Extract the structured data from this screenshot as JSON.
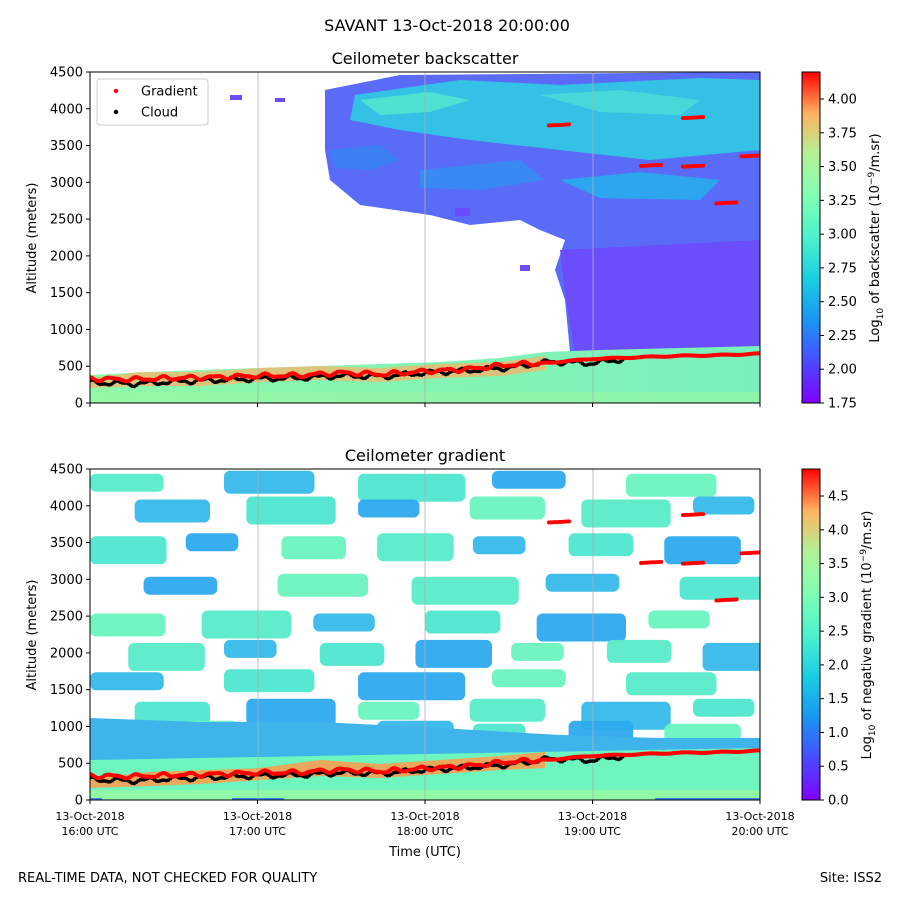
{
  "figure": {
    "suptitle": "SAVANT 13-Oct-2018 20:00:00",
    "footer_left": "REAL-TIME DATA, NOT CHECKED FOR QUALITY",
    "footer_right": "Site: ISS2",
    "xlabel": "Time (UTC)"
  },
  "chart_data": [
    {
      "type": "heatmap",
      "title": "Ceilometer backscatter",
      "ylabel": "Altitude (meters)",
      "ylim": [
        0,
        4500
      ],
      "yticks": [
        "0",
        "500",
        "1000",
        "1500",
        "2000",
        "2500",
        "3000",
        "3500",
        "4000",
        "4500"
      ],
      "xlim_hours": [
        16,
        20
      ],
      "x_ticks": [
        {
          "date": "13-Oct-2018",
          "time": "16:00 UTC"
        },
        {
          "date": "13-Oct-2018",
          "time": "17:00 UTC"
        },
        {
          "date": "13-Oct-2018",
          "time": "18:00 UTC"
        },
        {
          "date": "13-Oct-2018",
          "time": "19:00 UTC"
        },
        {
          "date": "13-Oct-2018",
          "time": "20:00 UTC"
        }
      ],
      "colorbar": {
        "label_prefix": "Log",
        "label_sub": "10",
        "label_mid": " of backscatter (10",
        "label_sup": "−9",
        "label_suffix": "/m.sr)",
        "range": [
          1.75,
          4.2
        ],
        "ticks": [
          "1.75",
          "2.00",
          "2.25",
          "2.50",
          "2.75",
          "3.00",
          "3.25",
          "3.50",
          "3.75",
          "4.00"
        ],
        "colormap": "rainbow"
      },
      "legend": {
        "position": "upper-left",
        "entries": [
          {
            "label": "Gradient",
            "color": "#ff0000"
          },
          {
            "label": "Cloud",
            "color": "#000000"
          }
        ]
      },
      "gradient_height_m": {
        "hours": [
          16.0,
          16.25,
          16.5,
          16.75,
          17.0,
          17.25,
          17.5,
          17.75,
          18.0,
          18.25,
          18.5,
          18.75,
          19.0,
          19.25,
          19.5,
          19.75,
          20.0
        ],
        "values": [
          330,
          320,
          340,
          350,
          370,
          375,
          410,
          390,
          430,
          460,
          520,
          550,
          600,
          620,
          640,
          650,
          670
        ]
      },
      "cloud_height_m": {
        "hours": [
          16.0,
          16.25,
          16.5,
          16.75,
          17.0,
          17.25,
          17.5,
          17.75,
          18.0,
          18.25,
          18.5,
          18.75,
          19.0,
          19.2
        ],
        "values": [
          280,
          260,
          290,
          310,
          330,
          340,
          370,
          360,
          410,
          440,
          480,
          560,
          540,
          600
        ]
      },
      "gradient_aloft": [
        {
          "hour": 18.8,
          "value": 3780
        },
        {
          "hour": 19.35,
          "value": 3230
        },
        {
          "hour": 19.6,
          "value": 3880
        },
        {
          "hour": 19.6,
          "value": 3220
        },
        {
          "hour": 19.8,
          "value": 2720
        },
        {
          "hour": 19.95,
          "value": 3360
        }
      ]
    },
    {
      "type": "heatmap",
      "title": "Ceilometer gradient",
      "ylabel": "Altitude (meters)",
      "ylim": [
        0,
        4500
      ],
      "yticks": [
        "0",
        "500",
        "1000",
        "1500",
        "2000",
        "2500",
        "3000",
        "3500",
        "4000",
        "4500"
      ],
      "xlim_hours": [
        16,
        20
      ],
      "x_ticks": [
        {
          "date": "13-Oct-2018",
          "time": "16:00 UTC"
        },
        {
          "date": "13-Oct-2018",
          "time": "17:00 UTC"
        },
        {
          "date": "13-Oct-2018",
          "time": "18:00 UTC"
        },
        {
          "date": "13-Oct-2018",
          "time": "19:00 UTC"
        },
        {
          "date": "13-Oct-2018",
          "time": "20:00 UTC"
        }
      ],
      "colorbar": {
        "label_prefix": "Log",
        "label_sub": "10",
        "label_mid": " of negative gradient (10",
        "label_sup": "−9",
        "label_suffix": "/m.sr)",
        "range": [
          0.0,
          4.9
        ],
        "ticks": [
          "0.0",
          "0.5",
          "1.0",
          "1.5",
          "2.0",
          "2.5",
          "3.0",
          "3.5",
          "4.0",
          "4.5"
        ],
        "colormap": "rainbow"
      },
      "gradient_height_m": {
        "hours": [
          16.0,
          16.25,
          16.5,
          16.75,
          17.0,
          17.25,
          17.5,
          17.75,
          18.0,
          18.25,
          18.5,
          18.75,
          19.0,
          19.25,
          19.5,
          19.75,
          20.0
        ],
        "values": [
          330,
          320,
          340,
          350,
          370,
          375,
          410,
          390,
          430,
          460,
          520,
          550,
          600,
          620,
          640,
          650,
          670
        ]
      },
      "cloud_height_m": {
        "hours": [
          16.0,
          16.25,
          16.5,
          16.75,
          17.0,
          17.25,
          17.5,
          17.75,
          18.0,
          18.25,
          18.5,
          18.75,
          19.0,
          19.2
        ],
        "values": [
          280,
          260,
          290,
          310,
          330,
          340,
          370,
          360,
          410,
          440,
          480,
          560,
          540,
          600
        ]
      },
      "gradient_aloft": [
        {
          "hour": 18.8,
          "value": 3780
        },
        {
          "hour": 19.35,
          "value": 3230
        },
        {
          "hour": 19.6,
          "value": 3880
        },
        {
          "hour": 19.6,
          "value": 3220
        },
        {
          "hour": 19.8,
          "value": 2720
        },
        {
          "hour": 19.95,
          "value": 3360
        }
      ],
      "data_bands_m": [
        {
          "value": 4300
        },
        {
          "value": 3950
        },
        {
          "value": 3450
        },
        {
          "value": 2900
        },
        {
          "value": 2400
        },
        {
          "value": 2000
        },
        {
          "value": 1600
        },
        {
          "value": 1200
        },
        {
          "value": 900
        }
      ]
    }
  ]
}
